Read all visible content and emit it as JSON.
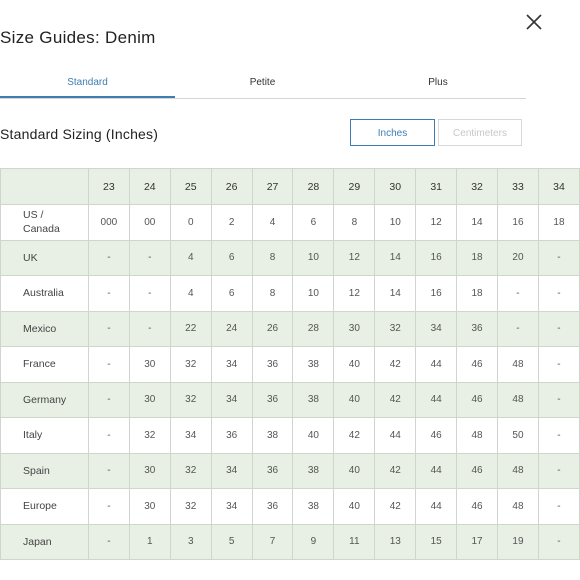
{
  "title": "Size Guides: Denim",
  "tabs": [
    {
      "label": "Standard",
      "active": true
    },
    {
      "label": "Petite",
      "active": false
    },
    {
      "label": "Plus",
      "active": false
    }
  ],
  "section_title": "Standard Sizing (Inches)",
  "units": {
    "inches": "Inches",
    "centimeters": "Centimeters",
    "selected": "Inches"
  },
  "colors": {
    "accent": "#3f7dae",
    "row_shade": "#e8efe4"
  },
  "table": {
    "headers": [
      "",
      "23",
      "24",
      "25",
      "26",
      "27",
      "28",
      "29",
      "30",
      "31",
      "32",
      "33",
      "34"
    ],
    "rows": [
      {
        "label1": "US /",
        "label2": "Canada",
        "values": [
          "000",
          "00",
          "0",
          "2",
          "4",
          "6",
          "8",
          "10",
          "12",
          "14",
          "16",
          "18"
        ]
      },
      {
        "label1": "UK",
        "label2": "",
        "values": [
          "-",
          "-",
          "4",
          "6",
          "8",
          "10",
          "12",
          "14",
          "16",
          "18",
          "20",
          "-"
        ]
      },
      {
        "label1": "Australia",
        "label2": "",
        "values": [
          "-",
          "-",
          "4",
          "6",
          "8",
          "10",
          "12",
          "14",
          "16",
          "18",
          "-",
          "-"
        ]
      },
      {
        "label1": "Mexico",
        "label2": "",
        "values": [
          "-",
          "-",
          "22",
          "24",
          "26",
          "28",
          "30",
          "32",
          "34",
          "36",
          "-",
          "-"
        ]
      },
      {
        "label1": "France",
        "label2": "",
        "values": [
          "-",
          "30",
          "32",
          "34",
          "36",
          "38",
          "40",
          "42",
          "44",
          "46",
          "48",
          "-"
        ]
      },
      {
        "label1": "Germany",
        "label2": "",
        "values": [
          "-",
          "30",
          "32",
          "34",
          "36",
          "38",
          "40",
          "42",
          "44",
          "46",
          "48",
          "-"
        ]
      },
      {
        "label1": "Italy",
        "label2": "",
        "values": [
          "-",
          "32",
          "34",
          "36",
          "38",
          "40",
          "42",
          "44",
          "46",
          "48",
          "50",
          "-"
        ]
      },
      {
        "label1": "Spain",
        "label2": "",
        "values": [
          "-",
          "30",
          "32",
          "34",
          "36",
          "38",
          "40",
          "42",
          "44",
          "46",
          "48",
          "-"
        ]
      },
      {
        "label1": "Europe",
        "label2": "",
        "values": [
          "-",
          "30",
          "32",
          "34",
          "36",
          "38",
          "40",
          "42",
          "44",
          "46",
          "48",
          "-"
        ]
      },
      {
        "label1": "Japan",
        "label2": "",
        "values": [
          "-",
          "1",
          "3",
          "5",
          "7",
          "9",
          "11",
          "13",
          "15",
          "17",
          "19",
          "-"
        ]
      }
    ]
  }
}
